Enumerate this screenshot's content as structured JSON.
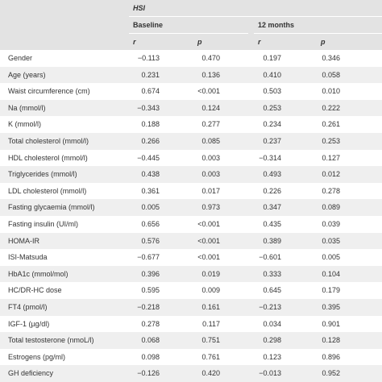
{
  "header": {
    "group": "HSI",
    "subgroups": [
      "Baseline",
      "12 months"
    ],
    "columns": [
      "r",
      "p",
      "r",
      "p"
    ]
  },
  "table": {
    "rows": [
      [
        "Gender",
        "−0.113",
        "0.470",
        "0.197",
        "0.346"
      ],
      [
        "Age (years)",
        "0.231",
        "0.136",
        "0.410",
        "0.058"
      ],
      [
        "Waist circumference (cm)",
        "0.674",
        "<0.001",
        "0.503",
        "0.010"
      ],
      [
        "Na (mmol/l)",
        "−0.343",
        "0.124",
        "0.253",
        "0.222"
      ],
      [
        "K (mmol/l)",
        "0.188",
        "0.277",
        "0.234",
        "0.261"
      ],
      [
        "Total cholesterol (mmol/l)",
        "0.266",
        "0.085",
        "0.237",
        "0.253"
      ],
      [
        "HDL cholesterol (mmol/l)",
        "−0.445",
        "0.003",
        "−0.314",
        "0.127"
      ],
      [
        "Triglycerides (mmol/l)",
        "0.438",
        "0.003",
        "0.493",
        "0.012"
      ],
      [
        "LDL cholesterol (mmol/l)",
        "0.361",
        "0.017",
        "0.226",
        "0.278"
      ],
      [
        "Fasting glycaemia (mmol/l)",
        "0.005",
        "0.973",
        "0.347",
        "0.089"
      ],
      [
        "Fasting insulin (UI/ml)",
        "0.656",
        "<0.001",
        "0.435",
        "0.039"
      ],
      [
        "HOMA-IR",
        "0.576",
        "<0.001",
        "0.389",
        "0.035"
      ],
      [
        "ISI-Matsuda",
        "−0.677",
        "<0.001",
        "−0.601",
        "0.005"
      ],
      [
        "HbA1c (mmol/mol)",
        "0.396",
        "0.019",
        "0.333",
        "0.104"
      ],
      [
        "HC/DR-HC dose",
        "0.595",
        "0.009",
        "0.645",
        "0.179"
      ],
      [
        "FT4 (pmol/l)",
        "−0.218",
        "0.161",
        "−0.213",
        "0.395"
      ],
      [
        "IGF-1 (µg/dl)",
        "0.278",
        "0.117",
        "0.034",
        "0.901"
      ],
      [
        "Total testosterone (nmoL/l)",
        "0.068",
        "0.751",
        "0.298",
        "0.128"
      ],
      [
        "Estrogens (pg/ml)",
        "0.098",
        "0.761",
        "0.123",
        "0.896"
      ],
      [
        "GH deficiency",
        "−0.126",
        "0.420",
        "−0.013",
        "0.952"
      ]
    ]
  }
}
